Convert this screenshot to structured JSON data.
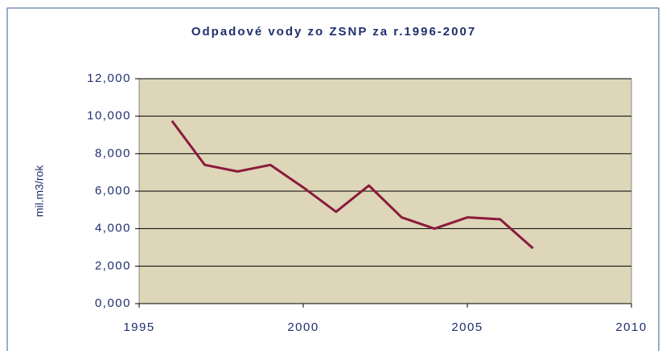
{
  "chart_data": {
    "type": "line",
    "title": "Odpadové vody zo ZSNP za r.1996-2007",
    "ylabel": "mil.m3/rok",
    "x": [
      1996,
      1997,
      1998,
      1999,
      2000,
      2001,
      2002,
      2003,
      2004,
      2005,
      2006,
      2007
    ],
    "series": [
      {
        "name": "Odpadové vody",
        "color": "#8b1a3c",
        "values": [
          9.75,
          7.4,
          7.05,
          7.4,
          6.2,
          4.9,
          6.3,
          4.6,
          4.0,
          4.6,
          4.5,
          2.95
        ]
      }
    ],
    "xlim": [
      1995,
      2010
    ],
    "xticks": [
      1995,
      2000,
      2005,
      2010
    ],
    "ylim": [
      0,
      12
    ],
    "yticks": [
      {
        "value": 0,
        "label": "0,000"
      },
      {
        "value": 2,
        "label": "2,000"
      },
      {
        "value": 4,
        "label": "4,000"
      },
      {
        "value": 6,
        "label": "6,000"
      },
      {
        "value": 8,
        "label": "8,000"
      },
      {
        "value": 10,
        "label": "10,000"
      },
      {
        "value": 12,
        "label": "12,000"
      }
    ],
    "grid": true,
    "plot_background": "#ddd6b8"
  }
}
